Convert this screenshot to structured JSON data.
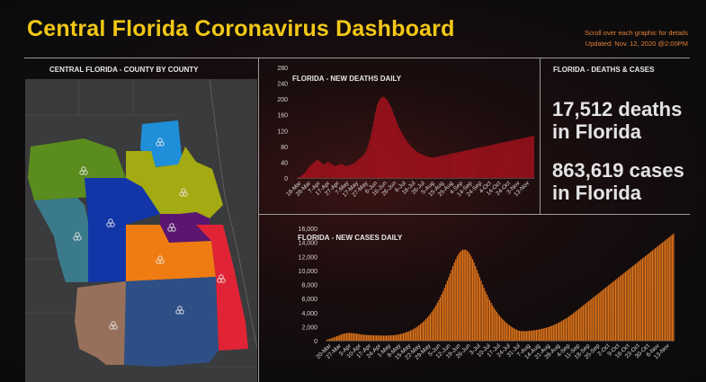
{
  "header": {
    "title": "Central Florida Coronavirus Dashboard",
    "hint": "Scroll over each graphic for details",
    "updated": "Updated: Nov. 12, 2020 @2:00PM"
  },
  "map_panel": {
    "label": "CENTRAL FLORIDA - COUNTY BY COUNTY",
    "region_colors": [
      "#5b8c1e",
      "#1e8fd8",
      "#a3aa12",
      "#3a7a8a",
      "#1236a8",
      "#5a1670",
      "#ef7c12",
      "#e02436",
      "#96705a",
      "#2e4f86"
    ]
  },
  "stats": {
    "label": "FLORIDA - DEATHS & CASES",
    "deaths_line1": "17,512 deaths",
    "deaths_line2": "in Florida",
    "cases_line1": "863,619 cases",
    "cases_line2": "in Florida"
  },
  "deaths_chart": {
    "type": "bar",
    "title": "FLORIDA - NEW DEATHS DAILY",
    "color": "#b3121f",
    "ylim": [
      0,
      280
    ],
    "yticks": [
      "0",
      "40",
      "80",
      "120",
      "160",
      "200",
      "240",
      "280"
    ],
    "xticks": [
      "18-Mar",
      "28-Mar",
      "7-Apr",
      "17-Apr",
      "27-Apr",
      "7-May",
      "17-May",
      "27-May",
      "6-Jun",
      "16-Jun",
      "26-Jun",
      "6-Jul",
      "16-Jul",
      "26-Jul",
      "5-Aug",
      "15-Aug",
      "25-Aug",
      "4-Sep",
      "14-Sep",
      "24-Sep",
      "4-Oct",
      "14-Oct",
      "24-Oct",
      "3-Nov",
      "13-Nov"
    ],
    "values": [
      1,
      2,
      2,
      3,
      4,
      6,
      8,
      10,
      12,
      14,
      18,
      22,
      24,
      28,
      30,
      32,
      34,
      36,
      38,
      40,
      42,
      44,
      46,
      45,
      44,
      42,
      40,
      38,
      36,
      34,
      35,
      36,
      38,
      40,
      41,
      40,
      38,
      36,
      35,
      34,
      32,
      30,
      30,
      31,
      32,
      33,
      34,
      35,
      36,
      35,
      34,
      33,
      32,
      31,
      30,
      30,
      31,
      32,
      33,
      34,
      35,
      36,
      37,
      38,
      40,
      42,
      44,
      46,
      48,
      50,
      52,
      54,
      56,
      58,
      62,
      66,
      70,
      76,
      82,
      90,
      100,
      110,
      120,
      132,
      144,
      156,
      168,
      178,
      186,
      192,
      196,
      200,
      202,
      204,
      205,
      206,
      204,
      202,
      200,
      198,
      194,
      190,
      186,
      182,
      176,
      170,
      164,
      158,
      152,
      146,
      140,
      134,
      128,
      124,
      120,
      116,
      112,
      108,
      104,
      100,
      96,
      93,
      90,
      87,
      84,
      81,
      78,
      76,
      74,
      72,
      70,
      68,
      66,
      64,
      63,
      62,
      61,
      60,
      59,
      58,
      57,
      56,
      55,
      54,
      54,
      53,
      53,
      52,
      52,
      52,
      52,
      52,
      53,
      53,
      54,
      54,
      55,
      55,
      56,
      56,
      57,
      57,
      58,
      58,
      59,
      59,
      60,
      60,
      61,
      61,
      62,
      62,
      63,
      63,
      64,
      64,
      65,
      65,
      66,
      66,
      67,
      67,
      68,
      68,
      69,
      69,
      70,
      70,
      71,
      71,
      72,
      72,
      73,
      73,
      74,
      74,
      75,
      75,
      76,
      76,
      77,
      77,
      78,
      78,
      79,
      79,
      80,
      80,
      81,
      81,
      82,
      82,
      83,
      83,
      84,
      84,
      85,
      85,
      86,
      86,
      87,
      87,
      88,
      88,
      89,
      89,
      90,
      90,
      91,
      91,
      92,
      92,
      93,
      93,
      94,
      94,
      95,
      95,
      96,
      96,
      97,
      97,
      98,
      98,
      99,
      99,
      100,
      100,
      101,
      101,
      102,
      102,
      103,
      103,
      104,
      104,
      105,
      105,
      106,
      106,
      107
    ]
  },
  "cases_chart": {
    "type": "bar",
    "title": "FLORIDA - NEW CASES DAILY",
    "color": "#e8781b",
    "ylim": [
      0,
      16000
    ],
    "yticks": [
      "0",
      "2,000",
      "4,000",
      "6,000",
      "8,000",
      "10,000",
      "12,000",
      "14,000",
      "16,000"
    ],
    "xticks": [
      "20-Mar",
      "27-Mar",
      "3-Apr",
      "10-Apr",
      "17-Apr",
      "24-Apr",
      "1-May",
      "8-May",
      "15-May",
      "22-May",
      "29-May",
      "5-Jun",
      "12-Jun",
      "19-Jun",
      "26-Jun",
      "3-Jul",
      "10-Jul",
      "17-Jul",
      "24-Jul",
      "31-Jul",
      "7-Aug",
      "14-Aug",
      "21-Aug",
      "28-Aug",
      "4-Sep",
      "11-Sep",
      "18-Sep",
      "25-Sep",
      "2-Oct",
      "9-Oct",
      "16-Oct",
      "23-Oct",
      "30-Oct",
      "6-Nov",
      "13-Nov"
    ],
    "values": [
      150,
      200,
      260,
      330,
      400,
      480,
      560,
      640,
      720,
      800,
      880,
      950,
      1000,
      1050,
      1080,
      1100,
      1110,
      1100,
      1080,
      1050,
      1020,
      990,
      960,
      930,
      900,
      880,
      860,
      840,
      820,
      800,
      790,
      780,
      770,
      760,
      750,
      745,
      740,
      735,
      730,
      725,
      720,
      720,
      725,
      730,
      740,
      750,
      760,
      780,
      800,
      830,
      860,
      900,
      950,
      1000,
      1060,
      1120,
      1190,
      1260,
      1340,
      1430,
      1530,
      1640,
      1760,
      1890,
      2030,
      2180,
      2340,
      2510,
      2690,
      2880,
      3080,
      3300,
      3540,
      3800,
      4080,
      4380,
      4700,
      5040,
      5400,
      5780,
      6180,
      6600,
      7050,
      7520,
      8010,
      8520,
      9040,
      9570,
      10100,
      10620,
      11120,
      11580,
      11990,
      12340,
      12620,
      12820,
      12940,
      12980,
      12940,
      12820,
      12620,
      12340,
      11990,
      11580,
      11120,
      10620,
      10100,
      9570,
      9040,
      8520,
      8010,
      7520,
      7050,
      6600,
      6180,
      5780,
      5400,
      5040,
      4700,
      4380,
      4080,
      3800,
      3540,
      3300,
      3080,
      2880,
      2690,
      2510,
      2340,
      2180,
      2030,
      1890,
      1770,
      1660,
      1560,
      1480,
      1420,
      1380,
      1360,
      1350,
      1350,
      1360,
      1380,
      1400,
      1420,
      1440,
      1470,
      1500,
      1530,
      1560,
      1600,
      1640,
      1690,
      1740,
      1790,
      1850,
      1910,
      1980,
      2050,
      2130,
      2210,
      2300,
      2390,
      2490,
      2590,
      2700,
      2810,
      2930,
      3050,
      3180,
      3310,
      3450,
      3590,
      3740,
      3890,
      4040,
      4200,
      4360,
      4520,
      4680,
      4840,
      5000,
      5160,
      5320,
      5480,
      5640,
      5800,
      5960,
      6120,
      6280,
      6440,
      6600,
      6760,
      6920,
      7080,
      7240,
      7400,
      7560,
      7720,
      7880,
      8040,
      8200,
      8360,
      8520,
      8680,
      8840,
      9000,
      9160,
      9320,
      9480,
      9640,
      9800,
      9960,
      10120,
      10280,
      10440,
      10600,
      10760,
      10920,
      11080,
      11240,
      11400,
      11560,
      11720,
      11880,
      12040,
      12200,
      12360,
      12520,
      12680,
      12840,
      13000,
      13160,
      13320,
      13480,
      13640,
      13800,
      13960,
      14120,
      14280,
      14440,
      14600,
      14760,
      14920,
      15080,
      15240
    ]
  },
  "chart_data": [
    {
      "type": "bar",
      "title": "FLORIDA - NEW DEATHS DAILY",
      "ylim": [
        0,
        280
      ],
      "x_start": "18-Mar",
      "x_end": "13-Nov",
      "note": "daily values (see deaths_chart.values)"
    },
    {
      "type": "bar",
      "title": "FLORIDA - NEW CASES DAILY",
      "ylim": [
        0,
        16000
      ],
      "x_start": "20-Mar",
      "x_end": "13-Nov",
      "note": "daily values (see cases_chart.values)"
    }
  ]
}
